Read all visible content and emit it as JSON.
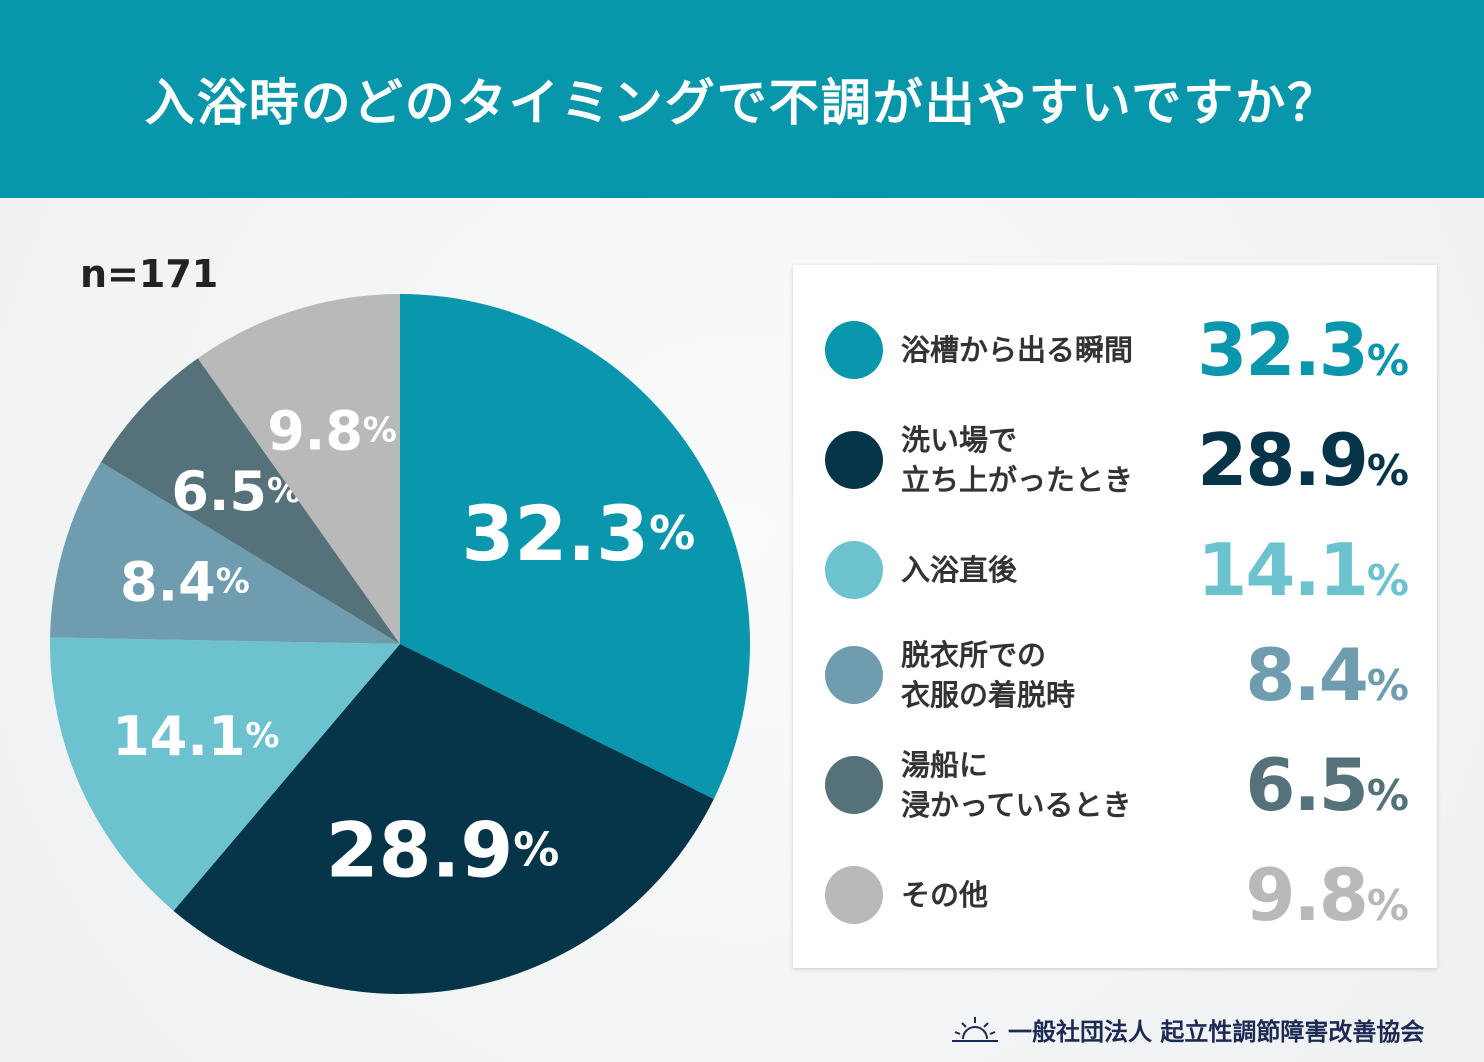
{
  "header": {
    "title": "入浴時のどのタイミングで不調が出やすいですか？"
  },
  "sample": "n=171",
  "footer": {
    "organization": "一般社団法人 起立性調節障害改善協会",
    "logo_icon": "sunrise-icon"
  },
  "chart_data": {
    "type": "pie",
    "title": "入浴時のどのタイミングで不調が出やすいですか？",
    "start": "top",
    "direction": "clockwise",
    "unit": "%",
    "slices": [
      {
        "label": "浴槽から出る瞬間",
        "value": 32.3,
        "display": "32.3",
        "color": "#0a96ad"
      },
      {
        "label": "洗い場で\n立ち上がったとき",
        "value": 28.9,
        "display": "28.9",
        "color": "#063449"
      },
      {
        "label": "入浴直後",
        "value": 14.1,
        "display": "14.1",
        "color": "#6cc3cf"
      },
      {
        "label": "脱衣所での\n衣服の着脱時",
        "value": 8.4,
        "display": "8.4",
        "color": "#6f9cae"
      },
      {
        "label": "湯船に\n浸かっているとき",
        "value": 6.5,
        "display": "6.5",
        "color": "#55727a"
      },
      {
        "label": "その他",
        "value": 9.8,
        "display": "9.8",
        "color": "#b9b9b9"
      }
    ],
    "legend": "right"
  }
}
